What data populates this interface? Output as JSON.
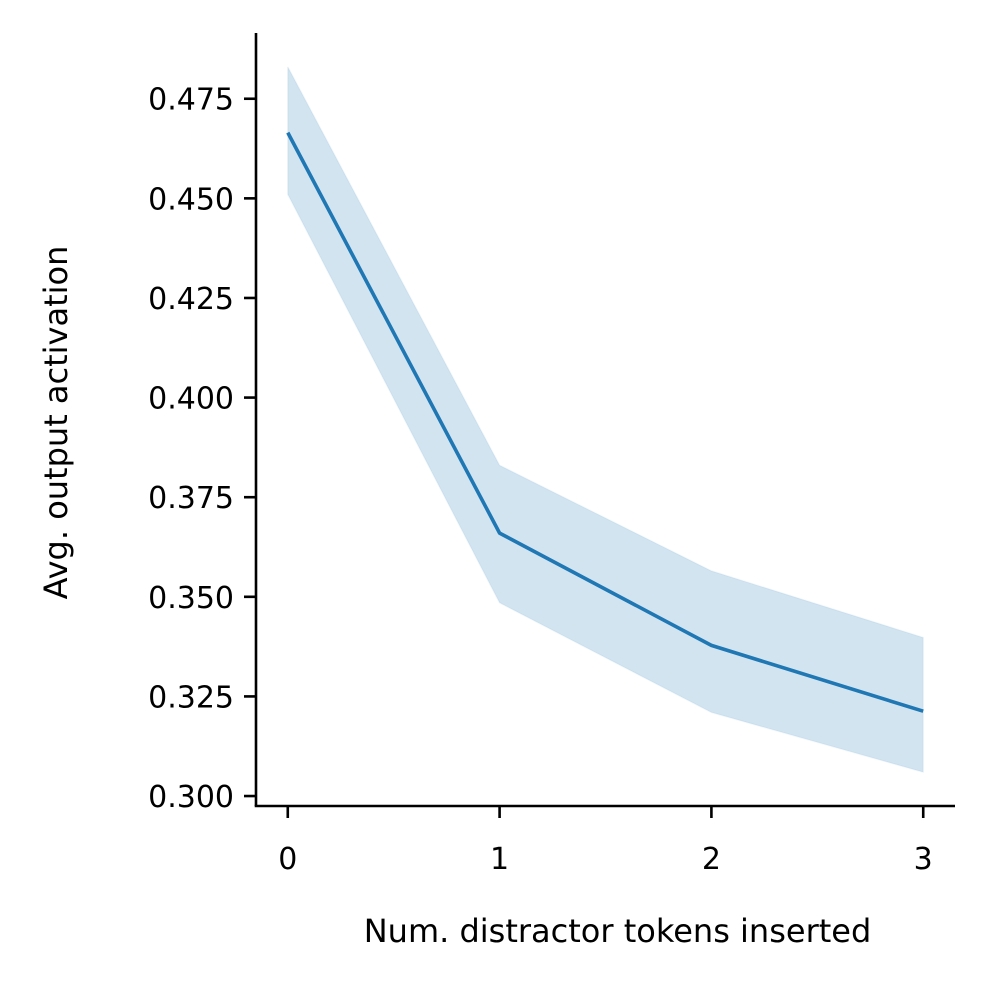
{
  "chart_data": {
    "type": "line",
    "title": "",
    "xlabel": "Num. distractor tokens inserted",
    "ylabel": "Avg. output activation",
    "x": [
      0,
      1,
      2,
      3
    ],
    "xticks": [
      "0",
      "1",
      "2",
      "3"
    ],
    "yticks": [
      "0.300",
      "0.325",
      "0.350",
      "0.375",
      "0.400",
      "0.425",
      "0.450",
      "0.475"
    ],
    "xlim": [
      -0.15,
      3.15
    ],
    "ylim": [
      0.2975,
      0.4915
    ],
    "grid": false,
    "legend": "none",
    "series": [
      {
        "values": [
          0.4665,
          0.366,
          0.3378,
          0.3213
        ],
        "ci_lower": [
          0.451,
          0.3485,
          0.321,
          0.306
        ],
        "ci_upper": [
          0.483,
          0.383,
          0.3565,
          0.3398
        ]
      }
    ],
    "colors": {
      "line": "#1f77b4",
      "band": "#1f77b4"
    }
  }
}
